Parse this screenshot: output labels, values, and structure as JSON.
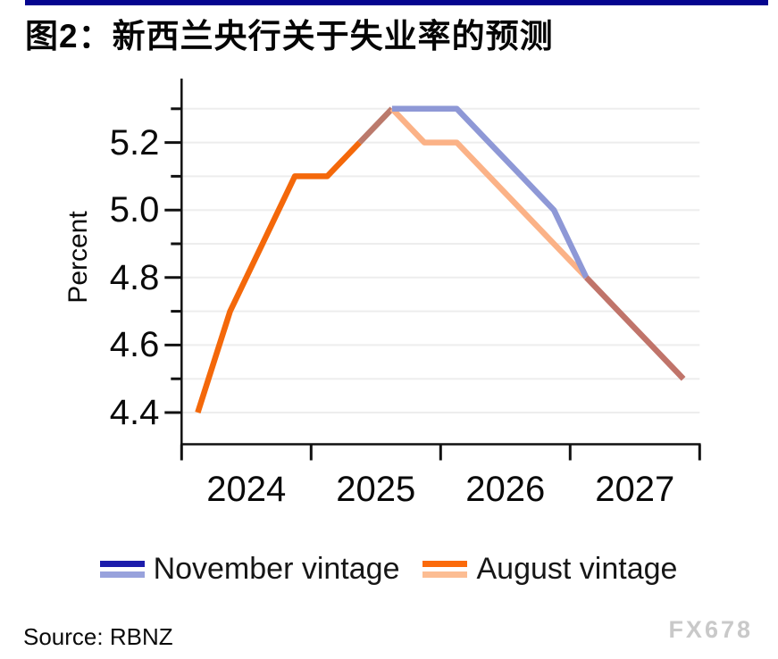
{
  "page": {
    "title": "图2：新西兰央行关于失业率的预测",
    "source": "Source: RBNZ",
    "watermark": "FX678",
    "accent_bar_color": "#05058f"
  },
  "legend": {
    "items": [
      {
        "label": "November vintage",
        "swatch_top": "#1c1cab",
        "swatch_bottom": "#98a2dc"
      },
      {
        "label": "August vintage",
        "swatch_top": "#fb6a0b",
        "swatch_bottom": "#fcbd93"
      }
    ]
  },
  "chart_data": {
    "type": "line",
    "title": "图2：新西兰央行关于失业率的预测",
    "xlabel": "",
    "ylabel": "Percent",
    "x_unit": "quarter",
    "categories": [
      "2024Q1",
      "2024Q2",
      "2024Q3",
      "2024Q4",
      "2025Q1",
      "2025Q2",
      "2025Q3",
      "2025Q4",
      "2026Q1",
      "2026Q2",
      "2026Q3",
      "2026Q4",
      "2027Q1",
      "2027Q2",
      "2027Q3",
      "2027Q4"
    ],
    "ylim": [
      4.3,
      5.38
    ],
    "grid": "horizontal-light",
    "legend_position": "bottom",
    "series": [
      {
        "name": "November vintage",
        "color": "#8e98d6",
        "values": [
          null,
          null,
          null,
          null,
          null,
          5.2,
          5.3,
          5.3,
          5.3,
          5.2,
          5.1,
          5.0,
          4.8,
          4.7,
          4.6,
          4.5
        ]
      },
      {
        "name": "August vintage",
        "color": "#f4680a",
        "forecast_color": "#fbb287",
        "values": [
          4.4,
          4.7,
          4.9,
          5.1,
          5.1,
          5.2,
          5.3,
          5.2,
          5.2,
          5.1,
          5.0,
          4.9,
          4.8,
          4.7,
          4.6,
          4.5
        ]
      }
    ],
    "overlap_note": "segments where both vintages coincide render as blended brown",
    "visual_segments": [
      {
        "name": "august-actual-line",
        "color": "#f4680a",
        "points": [
          [
            0,
            4.4
          ],
          [
            1,
            4.7
          ],
          [
            2,
            4.9
          ],
          [
            3,
            5.1
          ],
          [
            4,
            5.1
          ],
          [
            5,
            5.2
          ]
        ]
      },
      {
        "name": "overlap-rise-line",
        "color": "#bb7a6c",
        "points": [
          [
            5,
            5.2
          ],
          [
            6,
            5.3
          ]
        ]
      },
      {
        "name": "august-forecast-line",
        "color": "#fbb287",
        "points": [
          [
            6,
            5.3
          ],
          [
            7,
            5.2
          ],
          [
            8,
            5.2
          ],
          [
            9,
            5.1
          ],
          [
            10,
            5.0
          ],
          [
            11,
            4.9
          ],
          [
            12,
            4.8
          ]
        ]
      },
      {
        "name": "november-forecast-line",
        "color": "#8e98d6",
        "points": [
          [
            6,
            5.3
          ],
          [
            7,
            5.3
          ],
          [
            8,
            5.3
          ],
          [
            9,
            5.2
          ],
          [
            10,
            5.1
          ],
          [
            11,
            5.0
          ],
          [
            12,
            4.8
          ]
        ]
      },
      {
        "name": "overlap-tail-line",
        "color": "#c0746a",
        "points": [
          [
            12,
            4.8
          ],
          [
            13,
            4.7
          ],
          [
            14,
            4.6
          ],
          [
            15,
            4.5
          ]
        ]
      }
    ],
    "y_axis": {
      "label": "Percent",
      "ticks": [
        {
          "value": 5.2,
          "label": "5.2"
        },
        {
          "value": 5.0,
          "label": "5.0"
        },
        {
          "value": 4.8,
          "label": "4.8"
        },
        {
          "value": 4.6,
          "label": "4.6"
        },
        {
          "value": 4.4,
          "label": "4.4"
        }
      ],
      "minor_ticks": [
        5.3,
        5.1,
        4.9,
        4.7,
        4.5
      ],
      "gridlines": [
        4.4,
        4.5,
        4.6,
        4.7,
        4.8,
        4.9,
        5.0,
        5.1,
        5.2,
        5.3
      ]
    },
    "x_axis": {
      "labels": [
        "2024",
        "2025",
        "2026",
        "2027"
      ],
      "boundary_tick_count": 5
    }
  }
}
